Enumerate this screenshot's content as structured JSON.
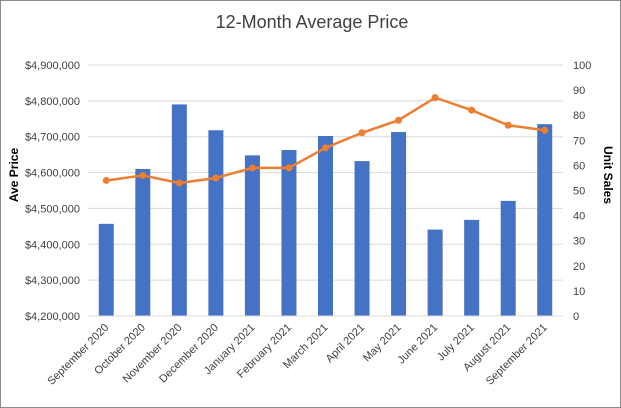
{
  "chart_data": {
    "type": "bar+line",
    "title": "12-Month Average Price",
    "categories": [
      "September 2020",
      "October 2020",
      "November 2020",
      "December 2020",
      "January 2021",
      "February 2021",
      "March 2021",
      "April 2021",
      "May 2021",
      "June 2021",
      "July 2021",
      "August 2021",
      "September 2021"
    ],
    "series": [
      {
        "name": "",
        "kind": "bar",
        "axis": "left",
        "color": "#4472C4",
        "values": [
          4457000,
          4610000,
          4790000,
          4718000,
          4648000,
          4663000,
          4702000,
          4632000,
          4713000,
          4441000,
          4468000,
          4521000,
          4735000
        ]
      },
      {
        "name": "",
        "kind": "line",
        "axis": "right",
        "color": "#ED7D31",
        "values": [
          54,
          56,
          53,
          55,
          59,
          59,
          67,
          73,
          78,
          87,
          82,
          76,
          74
        ]
      }
    ],
    "ylabel": "Ave Price",
    "y2label": "Unit Sales",
    "ylim": [
      4200000,
      4900000
    ],
    "y2lim": [
      0,
      100
    ],
    "yticks": [
      "$4,200,000",
      "$4,300,000",
      "$4,400,000",
      "$4,500,000",
      "$4,600,000",
      "$4,700,000",
      "$4,800,000",
      "$4,900,000"
    ],
    "y2ticks": [
      "0",
      "10",
      "20",
      "30",
      "40",
      "50",
      "60",
      "70",
      "80",
      "90",
      "100"
    ],
    "grid": true,
    "legend": "none"
  }
}
